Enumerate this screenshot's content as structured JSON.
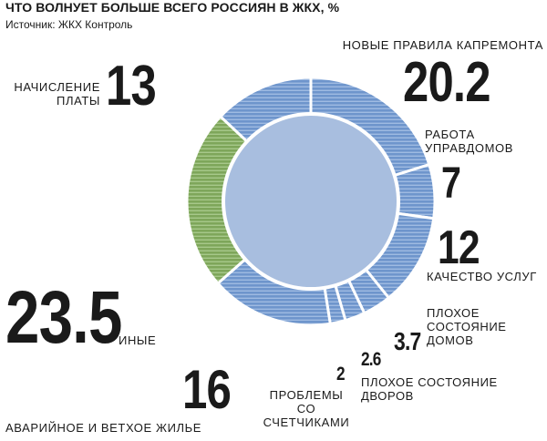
{
  "header": {
    "title": "ЧТО ВОЛНУЕТ БОЛЬШЕ ВСЕГО РОССИЯН В ЖКХ, %",
    "source": "Источник: ЖКХ Контроль"
  },
  "colors": {
    "blue_segment": "#6e95cc",
    "blue_line": "#9fbbe2",
    "green_segment": "#7ea65a",
    "green_line": "#a7c88a",
    "center": "#a8bedf",
    "separator": "#ffffff"
  },
  "chart_data": {
    "type": "pie",
    "variant": "donut",
    "start_angle_deg": 0,
    "direction": "clockwise",
    "segments": [
      {
        "label": "НОВЫЕ ПРАВИЛА КАПРЕМОНТА",
        "value": 20.2,
        "value_label": "20.2",
        "color": "blue"
      },
      {
        "label": "РАБОТА УПРАВДОМОВ",
        "value": 7,
        "value_label": "7",
        "color": "blue"
      },
      {
        "label": "КАЧЕСТВО УСЛУГ",
        "value": 12,
        "value_label": "12",
        "color": "blue"
      },
      {
        "label": "ПЛОХОЕ СОСТОЯНИЕ ДОМОВ",
        "value": 3.7,
        "value_label": "3.7",
        "color": "blue"
      },
      {
        "label": "ПЛОХОЕ СОСТОЯНИЕ ДВОРОВ",
        "value": 2.6,
        "value_label": "2.6",
        "color": "blue"
      },
      {
        "label": "ПРОБЛЕМЫ СО СЧЕТЧИКАМИ",
        "value": 2,
        "value_label": "2",
        "color": "blue"
      },
      {
        "label": "АВАРИЙНОЕ И ВЕТХОЕ ЖИЛЬЕ",
        "value": 16,
        "value_label": "16",
        "color": "blue"
      },
      {
        "label": "ИНЫЕ",
        "value": 23.5,
        "value_label": "23.5",
        "color": "green"
      },
      {
        "label": "НАЧИСЛЕНИЕ ПЛАТЫ",
        "value": 13,
        "value_label": "13",
        "color": "blue"
      }
    ]
  }
}
